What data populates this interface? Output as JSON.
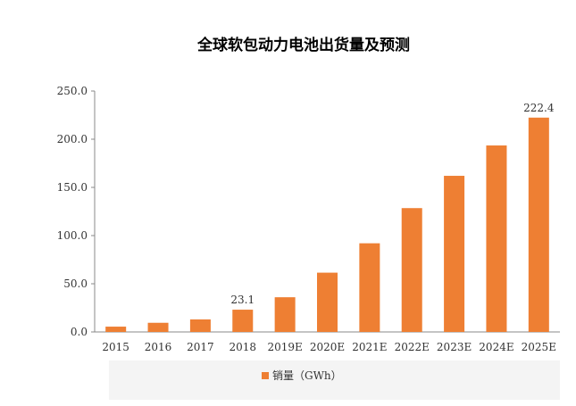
{
  "chart_data": {
    "type": "bar",
    "title": "全球软包动力电池出货量及预测",
    "categories": [
      "2015",
      "2016",
      "2017",
      "2018",
      "2019E",
      "2020E",
      "2021E",
      "2022E",
      "2023E",
      "2024E",
      "2025E"
    ],
    "series": [
      {
        "name": "销量（GWh）",
        "values": [
          5.5,
          9.5,
          13.0,
          23.1,
          36.0,
          61.5,
          92.0,
          128.5,
          162.0,
          193.5,
          222.4
        ],
        "color": "#ee7f33"
      }
    ],
    "data_labels": [
      {
        "category": "2018",
        "text": "23.1"
      },
      {
        "category": "2025E",
        "text": "222.4"
      }
    ],
    "yticks": [
      "0.0",
      "50.0",
      "100.0",
      "150.0",
      "200.0",
      "250.0"
    ],
    "ylim": [
      0,
      250
    ],
    "grid": false,
    "legend_position": "bottom"
  }
}
